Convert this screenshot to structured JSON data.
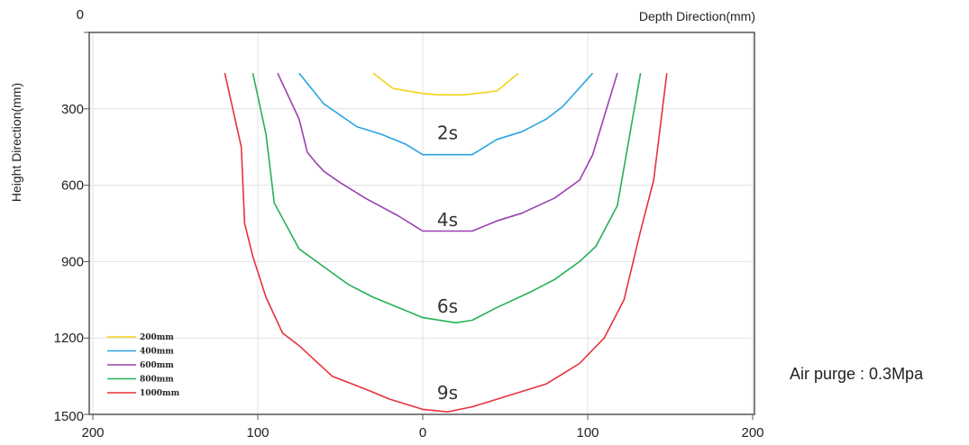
{
  "chart_data": {
    "type": "line",
    "title": "",
    "xlabel": "Depth Direction(mm)",
    "ylabel": "Height Direction(mm)",
    "x_tick_labels": [
      "200",
      "100",
      "0",
      "100",
      "200"
    ],
    "x_ticks": [
      -200,
      -100,
      0,
      100,
      200
    ],
    "y_tick_labels": [
      "0",
      "300",
      "600",
      "900",
      "1200",
      "1500"
    ],
    "y_ticks": [
      0,
      300,
      600,
      900,
      1200,
      1500
    ],
    "xlim": [
      -200,
      200
    ],
    "ylim": [
      0,
      1500
    ],
    "y_inverted": true,
    "grid": true,
    "legend_position": "bottom-left",
    "series": [
      {
        "name": "200mm",
        "color": "#f2d21b",
        "points": [
          [
            -30,
            160
          ],
          [
            -18,
            220
          ],
          [
            0,
            240
          ],
          [
            10,
            245
          ],
          [
            25,
            245
          ],
          [
            45,
            230
          ],
          [
            58,
            160
          ]
        ]
      },
      {
        "name": "400mm",
        "color": "#2aa5e0",
        "points": [
          [
            -75,
            160
          ],
          [
            -60,
            280
          ],
          [
            -40,
            370
          ],
          [
            -25,
            400
          ],
          [
            -10,
            440
          ],
          [
            0,
            480
          ],
          [
            30,
            480
          ],
          [
            45,
            420
          ],
          [
            60,
            390
          ],
          [
            75,
            340
          ],
          [
            85,
            290
          ],
          [
            103,
            160
          ]
        ]
      },
      {
        "name": "600mm",
        "color": "#9b3fb0",
        "points": [
          [
            -88,
            160
          ],
          [
            -75,
            340
          ],
          [
            -70,
            470
          ],
          [
            -65,
            510
          ],
          [
            -60,
            545
          ],
          [
            -50,
            590
          ],
          [
            -35,
            650
          ],
          [
            -15,
            720
          ],
          [
            0,
            780
          ],
          [
            15,
            780
          ],
          [
            30,
            780
          ],
          [
            45,
            740
          ],
          [
            60,
            710
          ],
          [
            80,
            650
          ],
          [
            95,
            580
          ],
          [
            103,
            480
          ],
          [
            118,
            160
          ]
        ]
      },
      {
        "name": "800mm",
        "color": "#26b05a",
        "points": [
          [
            -103,
            160
          ],
          [
            -95,
            400
          ],
          [
            -90,
            670
          ],
          [
            -75,
            850
          ],
          [
            -60,
            920
          ],
          [
            -45,
            990
          ],
          [
            -30,
            1040
          ],
          [
            -15,
            1080
          ],
          [
            0,
            1120
          ],
          [
            20,
            1140
          ],
          [
            30,
            1130
          ],
          [
            45,
            1080
          ],
          [
            65,
            1020
          ],
          [
            80,
            970
          ],
          [
            95,
            900
          ],
          [
            105,
            840
          ],
          [
            118,
            680
          ],
          [
            132,
            160
          ]
        ]
      },
      {
        "name": "1000mm",
        "color": "#e8313a",
        "points": [
          [
            -120,
            160
          ],
          [
            -110,
            450
          ],
          [
            -108,
            750
          ],
          [
            -103,
            880
          ],
          [
            -95,
            1040
          ],
          [
            -85,
            1180
          ],
          [
            -75,
            1230
          ],
          [
            -55,
            1350
          ],
          [
            -35,
            1400
          ],
          [
            -20,
            1440
          ],
          [
            0,
            1480
          ],
          [
            15,
            1490
          ],
          [
            30,
            1470
          ],
          [
            45,
            1440
          ],
          [
            60,
            1410
          ],
          [
            75,
            1380
          ],
          [
            95,
            1300
          ],
          [
            110,
            1200
          ],
          [
            122,
            1050
          ],
          [
            132,
            780
          ],
          [
            140,
            580
          ],
          [
            148,
            160
          ]
        ]
      }
    ],
    "annotations": [
      {
        "text": "2s",
        "x": 15,
        "y": 420
      },
      {
        "text": "4s",
        "x": 15,
        "y": 760
      },
      {
        "text": "6s",
        "x": 15,
        "y": 1100
      },
      {
        "text": "9s",
        "x": 15,
        "y": 1440
      }
    ]
  },
  "note": "Air purge : 0.3Mpa"
}
